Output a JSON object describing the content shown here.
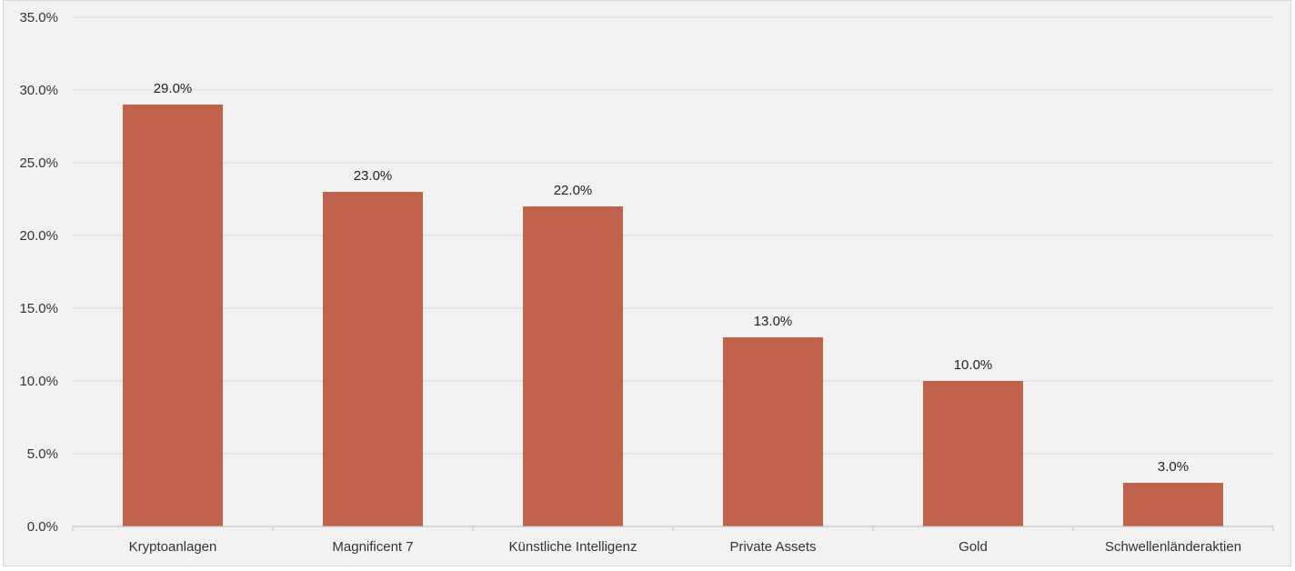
{
  "chart_data": {
    "type": "bar",
    "categories": [
      "Kryptoanlagen",
      "Magnificent 7",
      "Künstliche Intelligenz",
      "Private Assets",
      "Gold",
      "Schwellenländeraktien"
    ],
    "values": [
      29.0,
      23.0,
      22.0,
      13.0,
      10.0,
      3.0
    ],
    "value_labels": [
      "29.0%",
      "23.0%",
      "22.0%",
      "13.0%",
      "10.0%",
      "3.0%"
    ],
    "title": "",
    "xlabel": "",
    "ylabel": "",
    "ylim": [
      0,
      35
    ],
    "yticks": [
      0,
      5,
      10,
      15,
      20,
      25,
      30,
      35
    ],
    "ytick_labels": [
      "0.0%",
      "5.0%",
      "10.0%",
      "15.0%",
      "20.0%",
      "25.0%",
      "30.0%",
      "35.0%"
    ],
    "grid": true,
    "legend": "none",
    "colors": {
      "bar": "#c0614a",
      "background": "#f2f2f2",
      "grid": "#d9d9d9",
      "axis": "#bfbfbf"
    }
  }
}
